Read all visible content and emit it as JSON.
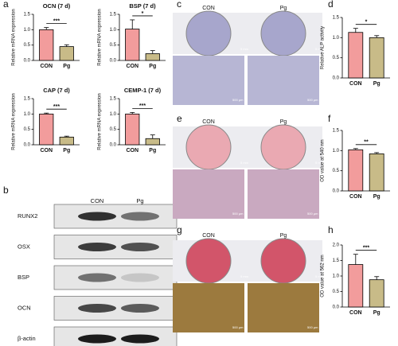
{
  "panels": [
    "a",
    "b",
    "c",
    "d",
    "e",
    "f",
    "g",
    "h"
  ],
  "blot": {
    "columns": [
      "CON",
      "Pg"
    ],
    "rows": [
      "RUNX2",
      "OSX",
      "BSP",
      "OCN",
      "β-actin"
    ]
  },
  "images": [
    {
      "columns": [
        "CON",
        "Pg"
      ],
      "scales": [
        "5 mm",
        "500 μm"
      ],
      "dish": "#a7a6cc",
      "field": "#b7b6d4"
    },
    {
      "columns": [
        "CON",
        "Pg"
      ],
      "scales": [
        "5 mm",
        "500 μm"
      ],
      "dish": "#eaa9b2",
      "field": "#c9a9c0"
    },
    {
      "columns": [
        "CON",
        "Pg"
      ],
      "scales": [
        "5 mm",
        "500 μm"
      ],
      "dish": "#d2556a",
      "field": "#9c7a3e"
    }
  ],
  "chart_data": [
    {
      "type": "bar",
      "title": "OCN (7 d)",
      "ylabel": "Relative mRNA expression",
      "categories": [
        "CON",
        "Pg"
      ],
      "values": [
        1.0,
        0.45
      ],
      "errors": [
        0.07,
        0.06
      ],
      "colors": [
        "#f29c9c",
        "#c8bb88"
      ],
      "ylim": [
        0,
        1.5
      ],
      "yticks": [
        {
          "value": 0,
          "label": "0.0"
        },
        {
          "value": 0.5,
          "label": "0.5"
        },
        {
          "value": 1,
          "label": "1.0"
        },
        {
          "value": 1.5,
          "label": "1.5"
        }
      ],
      "significance": "***"
    },
    {
      "type": "bar",
      "title": "BSP (7 d)",
      "ylabel": "Relative mRNA expression",
      "categories": [
        "CON",
        "Pg"
      ],
      "values": [
        1.02,
        0.22
      ],
      "errors": [
        0.3,
        0.1
      ],
      "colors": [
        "#f29c9c",
        "#c8bb88"
      ],
      "ylim": [
        0,
        1.5
      ],
      "yticks": [
        {
          "value": 0,
          "label": "0.0"
        },
        {
          "value": 0.5,
          "label": "0.5"
        },
        {
          "value": 1,
          "label": "1.0"
        },
        {
          "value": 1.5,
          "label": "1.5"
        }
      ],
      "significance": "*"
    },
    {
      "type": "bar",
      "title": "CAP (7 d)",
      "ylabel": "Relative mRNA expression",
      "categories": [
        "CON",
        "Pg"
      ],
      "values": [
        1.0,
        0.25
      ],
      "errors": [
        0.03,
        0.03
      ],
      "colors": [
        "#f29c9c",
        "#c8bb88"
      ],
      "ylim": [
        0,
        1.5
      ],
      "yticks": [
        {
          "value": 0,
          "label": "0.0"
        },
        {
          "value": 0.5,
          "label": "0.5"
        },
        {
          "value": 1,
          "label": "1.0"
        },
        {
          "value": 1.5,
          "label": "1.5"
        }
      ],
      "significance": "***"
    },
    {
      "type": "bar",
      "title": "CEMP-1 (7 d)",
      "ylabel": "Relative mRNA expression",
      "categories": [
        "CON",
        "Pg"
      ],
      "values": [
        1.0,
        0.2
      ],
      "errors": [
        0.05,
        0.12
      ],
      "colors": [
        "#f29c9c",
        "#c8bb88"
      ],
      "ylim": [
        0,
        1.5
      ],
      "yticks": [
        {
          "value": 0,
          "label": "0.0"
        },
        {
          "value": 0.5,
          "label": "0.5"
        },
        {
          "value": 1,
          "label": "1.0"
        },
        {
          "value": 1.5,
          "label": "1.5"
        }
      ],
      "significance": "***"
    },
    {
      "type": "bar",
      "ylabel": "Relative ALP activity",
      "categories": [
        "CON",
        "Pg"
      ],
      "values": [
        1.13,
        1.0
      ],
      "errors": [
        0.1,
        0.05
      ],
      "colors": [
        "#f29c9c",
        "#c8bb88"
      ],
      "ylim": [
        0,
        1.5
      ],
      "yticks": [
        {
          "value": 0,
          "label": "0.0"
        },
        {
          "value": 0.5,
          "label": "0.5"
        },
        {
          "value": 1,
          "label": "1.0"
        },
        {
          "value": 1.5,
          "label": "1.5"
        }
      ],
      "significance": "*"
    },
    {
      "type": "bar",
      "ylabel": "OD value at 540 nm",
      "categories": [
        "CON",
        "Pg"
      ],
      "values": [
        1.02,
        0.92
      ],
      "errors": [
        0.03,
        0.03
      ],
      "colors": [
        "#f29c9c",
        "#c8bb88"
      ],
      "ylim": [
        0,
        1.5
      ],
      "yticks": [
        {
          "value": 0,
          "label": "0.0"
        },
        {
          "value": 0.5,
          "label": "0.5"
        },
        {
          "value": 1,
          "label": "1.0"
        },
        {
          "value": 1.5,
          "label": "1.5"
        }
      ],
      "significance": "**"
    },
    {
      "type": "bar",
      "ylabel": "OD value at 562 nm",
      "categories": [
        "CON",
        "Pg"
      ],
      "values": [
        1.37,
        0.88
      ],
      "errors": [
        0.33,
        0.1
      ],
      "colors": [
        "#f29c9c",
        "#c8bb88"
      ],
      "ylim": [
        0,
        2
      ],
      "yticks": [
        {
          "value": 0,
          "label": "0.0"
        },
        {
          "value": 0.5,
          "label": "0.5"
        },
        {
          "value": 1,
          "label": "1.0"
        },
        {
          "value": 1.5,
          "label": "1.5"
        },
        {
          "value": 2,
          "label": "2.0"
        }
      ],
      "significance": "***"
    }
  ]
}
